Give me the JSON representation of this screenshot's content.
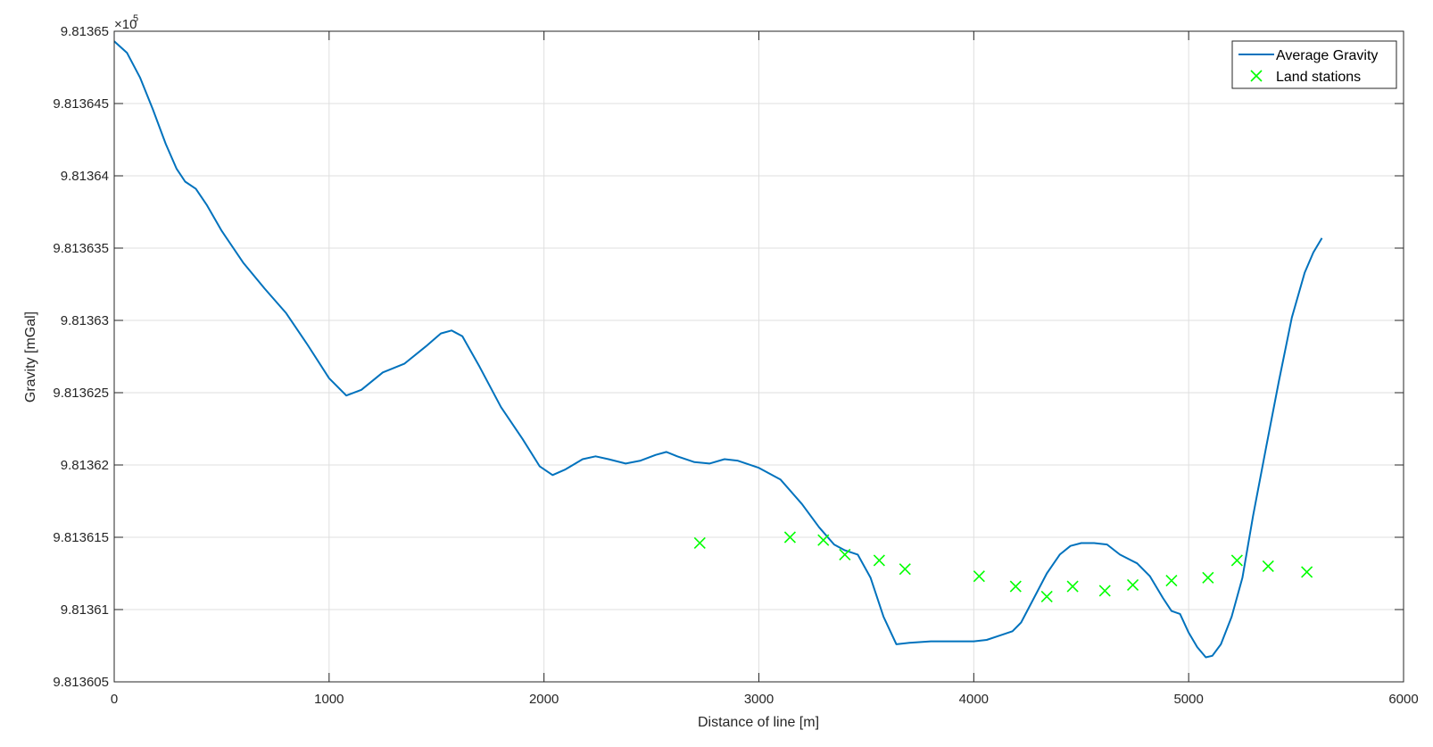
{
  "chart_data": {
    "type": "line",
    "xlabel": "Distance of line [m]",
    "ylabel": "Gravity [mGal]",
    "exponent_base": "×10",
    "exponent_power": "5",
    "xlim": [
      0,
      6000
    ],
    "ylim": [
      9.813605,
      9.81365
    ],
    "x_ticks": [
      0,
      1000,
      2000,
      3000,
      4000,
      5000,
      6000
    ],
    "x_tick_labels": [
      "0",
      "1000",
      "2000",
      "3000",
      "4000",
      "5000",
      "6000"
    ],
    "y_ticks": [
      9.813605,
      9.81361,
      9.813615,
      9.81362,
      9.813625,
      9.81363,
      9.813635,
      9.81364,
      9.813645,
      9.81365
    ],
    "y_tick_labels": [
      "9.813605",
      "9.81361",
      "9.813615",
      "9.81362",
      "9.813625",
      "9.81363",
      "9.813635",
      "9.81364",
      "9.813645",
      "9.81365"
    ],
    "grid": true,
    "legend_position": "top-right",
    "colors": {
      "line": "#0072BD",
      "markers": "#00FF00",
      "grid": "#DFDFDF",
      "axes": "#262626"
    },
    "series": [
      {
        "name": "Average Gravity",
        "kind": "line",
        "points": [
          [
            0,
            9.8136493
          ],
          [
            60,
            9.8136485
          ],
          [
            120,
            9.8136468
          ],
          [
            180,
            9.8136446
          ],
          [
            240,
            9.8136422
          ],
          [
            290,
            9.8136405
          ],
          [
            330,
            9.8136396
          ],
          [
            380,
            9.8136391
          ],
          [
            430,
            9.813638
          ],
          [
            500,
            9.8136362
          ],
          [
            600,
            9.813634
          ],
          [
            700,
            9.8136322
          ],
          [
            800,
            9.8136305
          ],
          [
            900,
            9.8136283
          ],
          [
            1000,
            9.813626
          ],
          [
            1080,
            9.8136248
          ],
          [
            1150,
            9.8136252
          ],
          [
            1250,
            9.8136264
          ],
          [
            1350,
            9.813627
          ],
          [
            1450,
            9.8136282
          ],
          [
            1520,
            9.8136291
          ],
          [
            1570,
            9.8136293
          ],
          [
            1620,
            9.8136289
          ],
          [
            1700,
            9.8136268
          ],
          [
            1800,
            9.813624
          ],
          [
            1900,
            9.8136218
          ],
          [
            1980,
            9.8136199
          ],
          [
            2040,
            9.8136193
          ],
          [
            2100,
            9.8136197
          ],
          [
            2180,
            9.8136204
          ],
          [
            2240,
            9.8136206
          ],
          [
            2300,
            9.8136204
          ],
          [
            2380,
            9.8136201
          ],
          [
            2450,
            9.8136203
          ],
          [
            2520,
            9.8136207
          ],
          [
            2570,
            9.8136209
          ],
          [
            2620,
            9.8136206
          ],
          [
            2700,
            9.8136202
          ],
          [
            2770,
            9.8136201
          ],
          [
            2840,
            9.8136204
          ],
          [
            2900,
            9.8136203
          ],
          [
            3000,
            9.8136198
          ],
          [
            3100,
            9.813619
          ],
          [
            3200,
            9.8136173
          ],
          [
            3280,
            9.8136157
          ],
          [
            3350,
            9.8136145
          ],
          [
            3400,
            9.8136141
          ],
          [
            3460,
            9.8136138
          ],
          [
            3520,
            9.8136122
          ],
          [
            3580,
            9.8136095
          ],
          [
            3640,
            9.8136076
          ],
          [
            3700,
            9.8136077
          ],
          [
            3800,
            9.8136078
          ],
          [
            3900,
            9.8136078
          ],
          [
            4000,
            9.8136078
          ],
          [
            4060,
            9.8136079
          ],
          [
            4120,
            9.8136082
          ],
          [
            4180,
            9.8136085
          ],
          [
            4220,
            9.8136091
          ],
          [
            4280,
            9.8136108
          ],
          [
            4340,
            9.8136125
          ],
          [
            4400,
            9.8136138
          ],
          [
            4450,
            9.8136144
          ],
          [
            4500,
            9.8136146
          ],
          [
            4560,
            9.8136146
          ],
          [
            4620,
            9.8136145
          ],
          [
            4680,
            9.8136138
          ],
          [
            4760,
            9.8136132
          ],
          [
            4820,
            9.8136123
          ],
          [
            4880,
            9.8136108
          ],
          [
            4920,
            9.8136099
          ],
          [
            4960,
            9.8136097
          ],
          [
            5000,
            9.8136084
          ],
          [
            5040,
            9.8136074
          ],
          [
            5080,
            9.8136067
          ],
          [
            5110,
            9.8136068
          ],
          [
            5150,
            9.8136076
          ],
          [
            5200,
            9.8136095
          ],
          [
            5250,
            9.8136122
          ],
          [
            5300,
            9.8136165
          ],
          [
            5360,
            9.8136212
          ],
          [
            5420,
            9.8136258
          ],
          [
            5480,
            9.8136302
          ],
          [
            5540,
            9.8136333
          ],
          [
            5580,
            9.8136347
          ],
          [
            5620,
            9.8136357
          ]
        ]
      },
      {
        "name": "Land stations",
        "kind": "scatter",
        "points": [
          [
            2725,
            9.8136146
          ],
          [
            3145,
            9.813615
          ],
          [
            3300,
            9.8136148
          ],
          [
            3400,
            9.8136138
          ],
          [
            3560,
            9.8136134
          ],
          [
            3680,
            9.8136128
          ],
          [
            4025,
            9.8136123
          ],
          [
            4195,
            9.8136116
          ],
          [
            4340,
            9.8136109
          ],
          [
            4460,
            9.8136116
          ],
          [
            4610,
            9.8136113
          ],
          [
            4740,
            9.8136117
          ],
          [
            4920,
            9.813612
          ],
          [
            5090,
            9.8136122
          ],
          [
            5225,
            9.8136134
          ],
          [
            5370,
            9.813613
          ],
          [
            5550,
            9.8136126
          ]
        ]
      }
    ]
  }
}
